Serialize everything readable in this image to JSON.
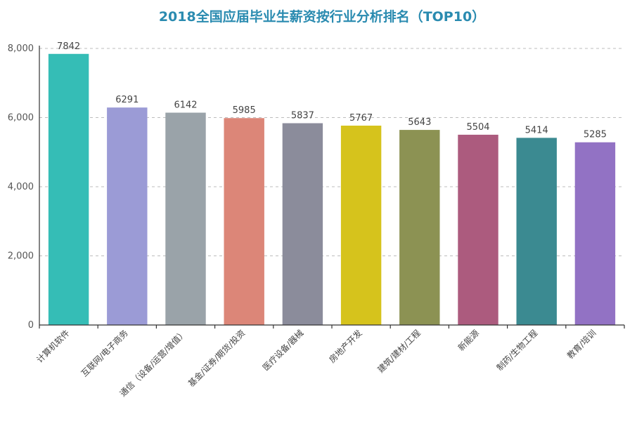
{
  "chart_data": {
    "type": "bar",
    "title": "2018全国应届毕业生薪资按行业分析排名（TOP10）",
    "xlabel": "",
    "ylabel": "",
    "ylim": [
      0,
      8000
    ],
    "yticks": [
      0,
      2000,
      4000,
      6000,
      8000
    ],
    "ytick_labels": [
      "0",
      "2,000",
      "4,000",
      "6,000",
      "8,000"
    ],
    "grid": true,
    "legend": "none",
    "categories": [
      "计算机软件",
      "互联网/电子商务",
      "通信（设备/运营/增值）",
      "基金/证券/期货/投资",
      "医疗设备/器械",
      "房地产开发",
      "建筑/建材/工程",
      "新能源",
      "制药/生物工程",
      "教育/培训"
    ],
    "values": [
      7842,
      6291,
      6142,
      5985,
      5837,
      5767,
      5643,
      5504,
      5414,
      5285
    ],
    "value_labels": [
      "7842",
      "6291",
      "6142",
      "5985",
      "5837",
      "5767",
      "5643",
      "5504",
      "5414",
      "5285"
    ],
    "colors": [
      "#35bdb6",
      "#9b9bd6",
      "#9aa3a9",
      "#dc8678",
      "#8b8c9b",
      "#d6c31c",
      "#8c9253",
      "#ac5b7e",
      "#3b8a91",
      "#9272c4"
    ]
  }
}
